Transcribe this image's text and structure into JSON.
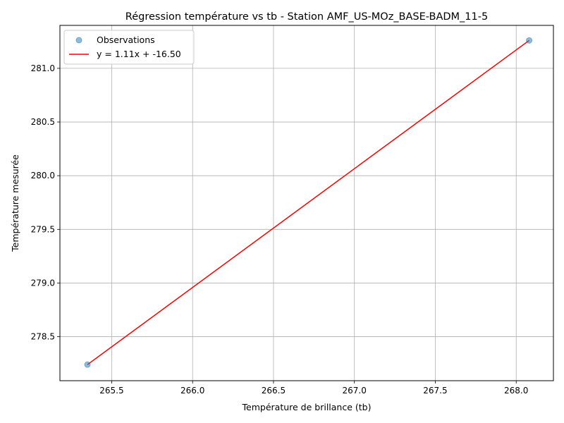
{
  "chart_data": {
    "type": "scatter",
    "title": "Régression température vs tb - Station AMF_US-MOz_BASE-BADM_11-5",
    "xlabel": "Température de brillance (tb)",
    "ylabel": "Température mesurée",
    "xlim": [
      265.18,
      268.23
    ],
    "ylim": [
      278.09,
      281.4
    ],
    "xticks": [
      265.5,
      266.0,
      266.5,
      267.0,
      267.5,
      268.0
    ],
    "xtick_labels": [
      "265.5",
      "266.0",
      "266.5",
      "267.0",
      "267.5",
      "268.0"
    ],
    "yticks": [
      278.5,
      279.0,
      279.5,
      280.0,
      280.5,
      281.0
    ],
    "ytick_labels": [
      "278.5",
      "279.0",
      "279.5",
      "280.0",
      "280.5",
      "281.0"
    ],
    "grid": true,
    "legend_position": "top-left",
    "series": [
      {
        "name": "Observations",
        "kind": "scatter",
        "color": "#1f77b4",
        "points": [
          {
            "x": 265.35,
            "y": 278.24
          },
          {
            "x": 268.08,
            "y": 281.26
          }
        ]
      },
      {
        "name": "y = 1.11x + -16.50",
        "kind": "line",
        "color": "#ff0000",
        "points": [
          {
            "x": 265.35,
            "y": 278.24
          },
          {
            "x": 268.08,
            "y": 281.26
          }
        ]
      }
    ]
  }
}
